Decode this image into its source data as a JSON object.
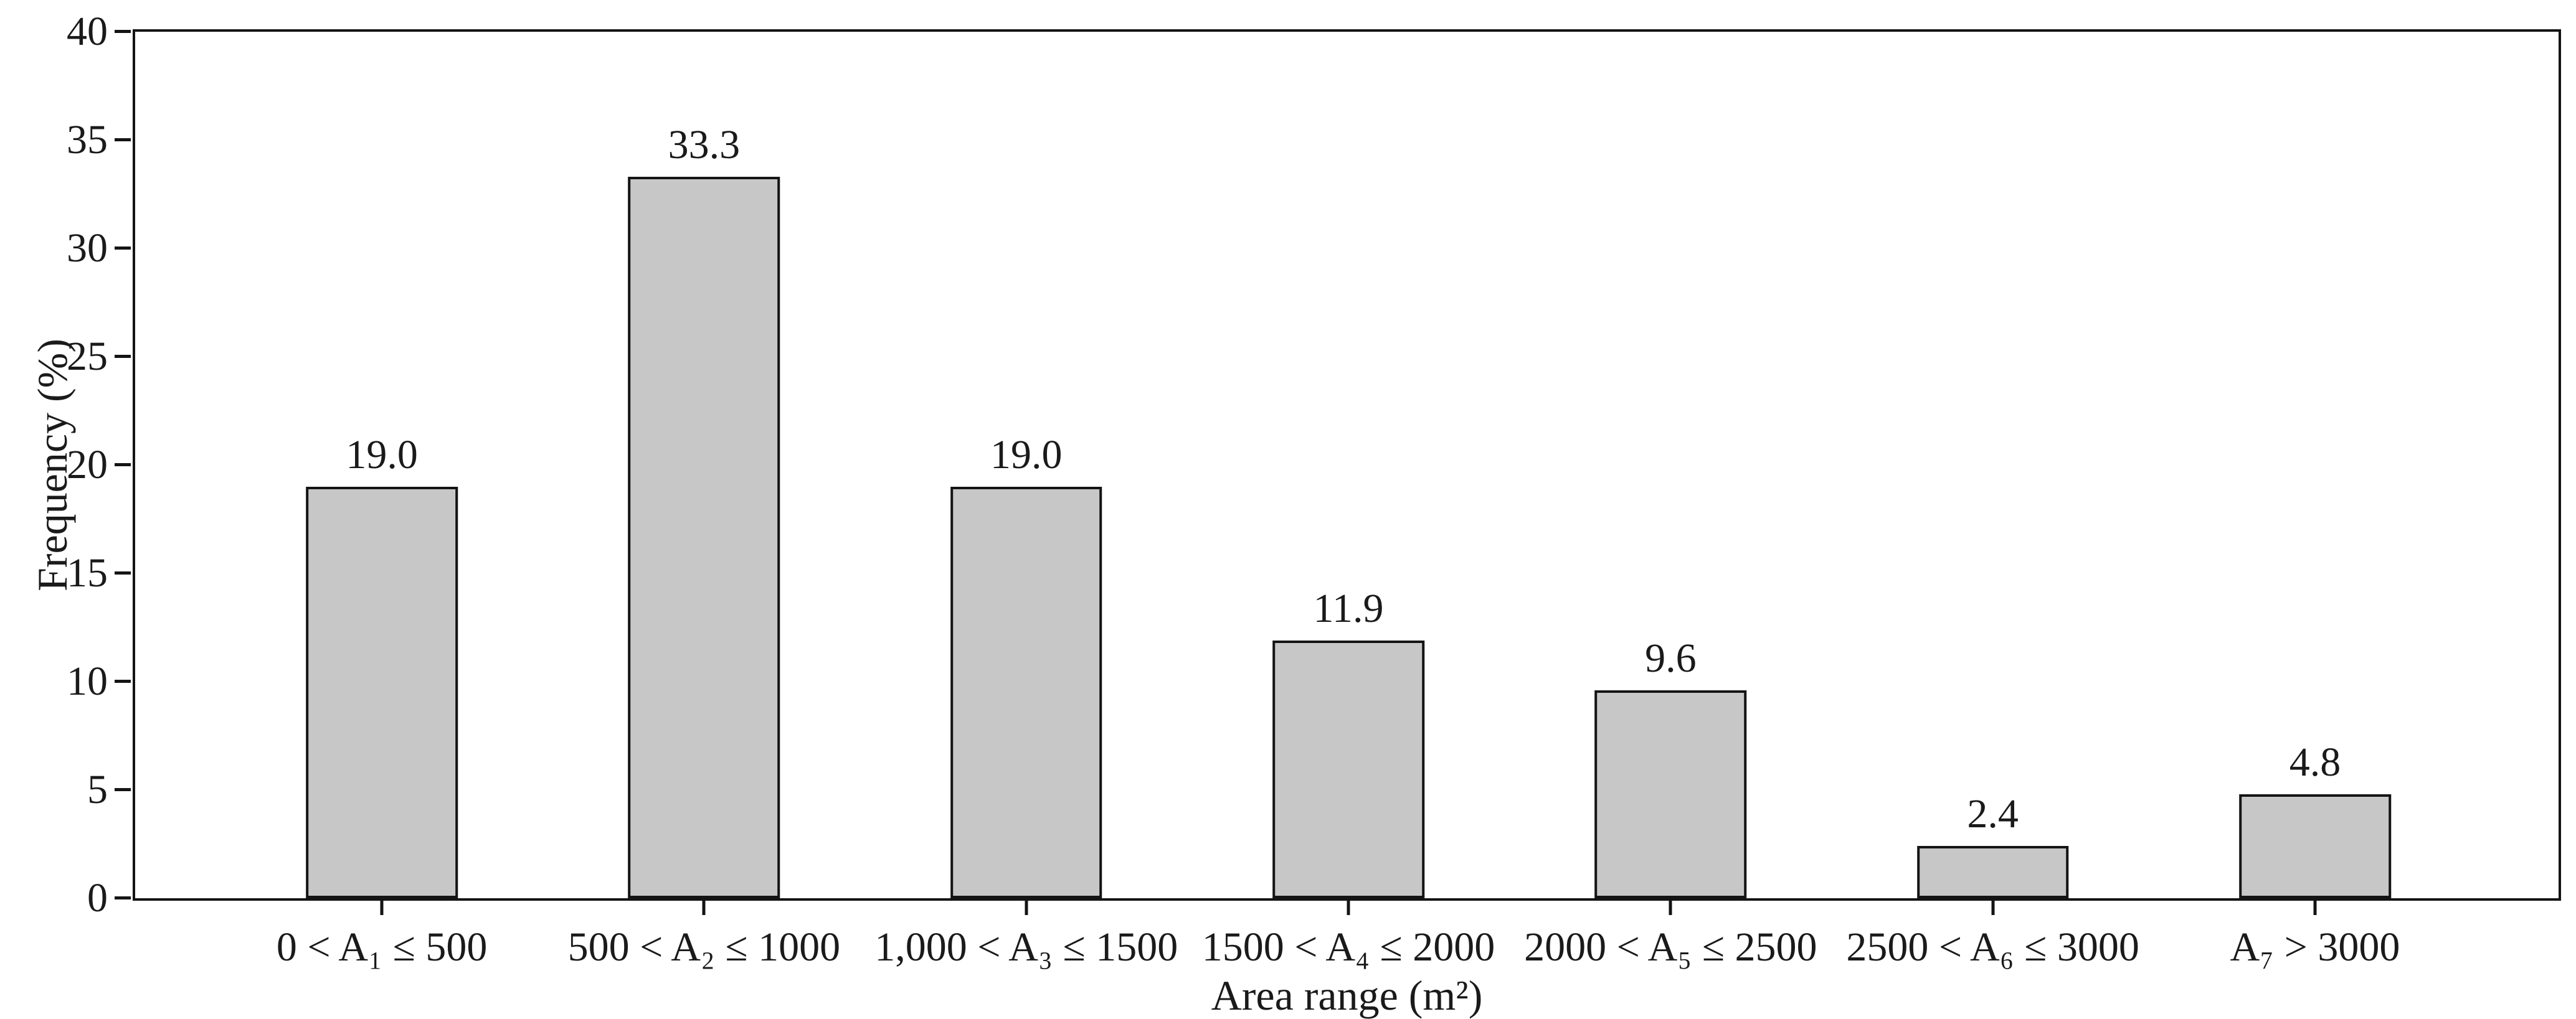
{
  "chart_data": {
    "type": "bar",
    "title": "",
    "categories": [
      "0 < A₁ ≤ 500",
      "500 < A₂ ≤ 1000",
      "1,000 < A₃ ≤ 1500",
      "1500 < A₄ ≤ 2000",
      "2000 < A₅ ≤ 2500",
      "2500 < A₆ ≤ 3000",
      "A₇ > 3000"
    ],
    "values": [
      19.0,
      33.3,
      19.0,
      11.9,
      9.6,
      2.4,
      4.8
    ],
    "value_labels": [
      "19.0",
      "33.3",
      "19.0",
      "11.9",
      "9.6",
      "2.4",
      "4.8"
    ],
    "xlabel": "Area range (m²)",
    "ylabel": "Frequency (%)",
    "ylim": [
      0,
      40
    ],
    "yticks": [
      0,
      5,
      10,
      15,
      20,
      25,
      30,
      35,
      40
    ],
    "grid": false,
    "legend": "none",
    "bar_fill": "#c7c7c7",
    "bar_border": "#141414",
    "frame": "full-box"
  }
}
